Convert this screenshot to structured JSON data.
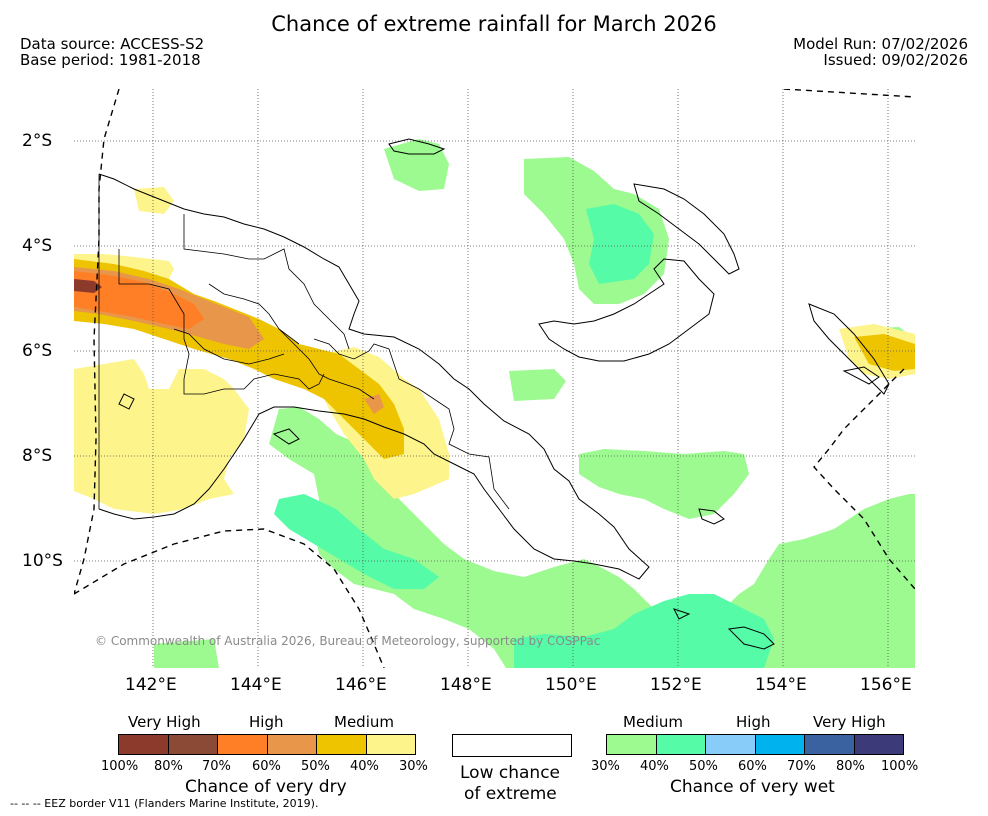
{
  "title": "Chance of extreme rainfall for March 2026",
  "meta": {
    "source": "Data source: ACCESS-S2",
    "base_period": "Base period: 1981-2018",
    "model_run": "Model Run: 07/02/2026",
    "issued": "Issued: 09/02/2026"
  },
  "axes": {
    "lat_labels": [
      "2°S",
      "4°S",
      "6°S",
      "8°S",
      "10°S"
    ],
    "lon_labels": [
      "142°E",
      "144°E",
      "146°E",
      "148°E",
      "150°E",
      "152°E",
      "154°E",
      "156°E"
    ]
  },
  "copyright": "© Commonwealth of Australia 2026, Bureau of Meteorology, supported by COSPPac",
  "legend": {
    "dry": {
      "headers": [
        "Very High",
        "High",
        "Medium"
      ],
      "colors": [
        "#8b3a2c",
        "#8a4a36",
        "#ff7f27",
        "#e8964a",
        "#eec400",
        "#fdf48c"
      ],
      "ticks": [
        "100%",
        "80%",
        "70%",
        "60%",
        "50%",
        "40%",
        "30%"
      ],
      "caption": "Chance of very dry"
    },
    "low": {
      "caption_line1": "Low chance",
      "caption_line2": "of extreme"
    },
    "wet": {
      "headers": [
        "Medium",
        "High",
        "Very High"
      ],
      "colors": [
        "#9cfa90",
        "#55fba6",
        "#88cdfa",
        "#00b2ee",
        "#3a62a0",
        "#3d3a7a"
      ],
      "ticks": [
        "30%",
        "40%",
        "50%",
        "60%",
        "70%",
        "80%",
        "100%"
      ],
      "caption": "Chance of very wet"
    }
  },
  "eez_note": "-- -- -- EEZ border V11 (Flanders Marine Institute, 2019)."
}
